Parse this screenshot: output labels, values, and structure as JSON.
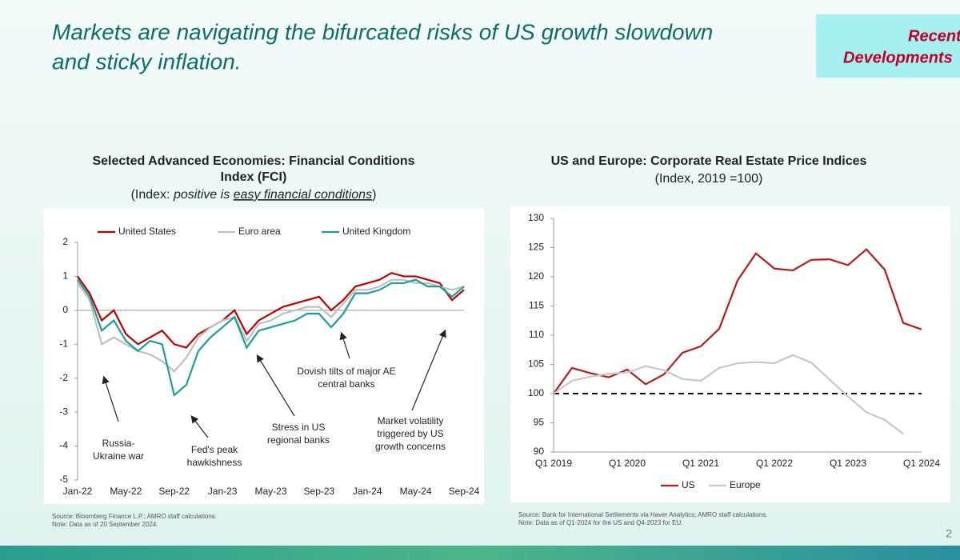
{
  "slide": {
    "title": [
      "Markets are navigating the bifurcated risks of US growth slowdown",
      "and sticky inflation."
    ],
    "tag": [
      "Recent",
      "Developments"
    ],
    "page": "2"
  },
  "chart_data": [
    {
      "type": "line",
      "title": [
        "Selected Advanced Economies: Financial Conditions",
        "Index (FCI)"
      ],
      "subtitle": [
        "(Index: ",
        "positive is ",
        "easy financial conditions",
        ")"
      ],
      "categories": [
        "Jan-22",
        null,
        null,
        null,
        "May-22",
        null,
        null,
        null,
        "Sep-22",
        null,
        null,
        null,
        "Jan-23",
        null,
        null,
        null,
        "May-23",
        null,
        null,
        null,
        "Sep-23",
        null,
        null,
        null,
        "Jan-24",
        null,
        null,
        null,
        "May-24",
        null,
        null,
        null,
        "Sep-24"
      ],
      "series": [
        {
          "name": "United States",
          "color": "#c00000",
          "values": [
            1.0,
            0.5,
            -0.3,
            0.0,
            -0.7,
            -1.0,
            -0.8,
            -0.6,
            -1.0,
            -1.1,
            -0.7,
            -0.5,
            -0.3,
            0.0,
            -0.7,
            -0.3,
            -0.1,
            0.1,
            0.2,
            0.3,
            0.4,
            0.0,
            0.3,
            0.7,
            0.8,
            0.9,
            1.1,
            1.0,
            1.0,
            0.9,
            0.8,
            0.3,
            0.6
          ]
        },
        {
          "name": "Euro area",
          "color": "#bfbfbf",
          "values": [
            0.8,
            0.3,
            -1.0,
            -0.8,
            -1.0,
            -1.2,
            -1.3,
            -1.5,
            -1.8,
            -1.4,
            -0.8,
            -0.5,
            -0.3,
            -0.2,
            -0.9,
            -0.4,
            -0.3,
            -0.1,
            0.0,
            0.1,
            0.1,
            -0.2,
            0.2,
            0.6,
            0.6,
            0.7,
            0.9,
            0.9,
            0.8,
            0.8,
            0.7,
            0.6,
            0.7
          ]
        },
        {
          "name": "United Kingdom",
          "color": "#1a9e9e",
          "values": [
            0.9,
            0.4,
            -0.6,
            -0.3,
            -0.9,
            -1.2,
            -0.9,
            -1.0,
            -2.5,
            -2.2,
            -1.2,
            -0.8,
            -0.5,
            -0.2,
            -1.1,
            -0.6,
            -0.5,
            -0.4,
            -0.3,
            -0.1,
            -0.1,
            -0.5,
            -0.1,
            0.5,
            0.5,
            0.6,
            0.8,
            0.8,
            0.9,
            0.7,
            0.7,
            0.4,
            0.7
          ]
        }
      ],
      "ylim": [
        -5,
        2
      ],
      "yticks": [
        -5,
        -4,
        -3,
        -2,
        -1,
        0,
        1,
        2
      ],
      "legend": "top",
      "annotations": [
        [
          "Russia-",
          "Ukraine war"
        ],
        [
          "Fed's peak",
          "hawkishness"
        ],
        [
          "Stress in US",
          "regional banks"
        ],
        [
          "Dovish tilts of major AE",
          "central banks"
        ],
        [
          "Market volatility",
          "triggered by US",
          "growth concerns"
        ]
      ],
      "source": "Source: Bloomberg Finance L.P.; AMRO staff calculations.",
      "note": "Note: Data as of 20 September 2024."
    },
    {
      "type": "line",
      "title": [
        "US and Europe: Corporate Real Estate Price Indices"
      ],
      "subtitle": [
        "(Index, 2019 =100)"
      ],
      "categories": [
        "Q1 2019",
        null,
        null,
        null,
        "Q1 2020",
        null,
        null,
        null,
        "Q1 2021",
        null,
        null,
        null,
        "Q1 2022",
        null,
        null,
        null,
        "Q1 2023",
        null,
        null,
        null,
        "Q1 2024"
      ],
      "series": [
        {
          "name": "US",
          "color": "#b71c1c",
          "values": [
            100,
            104.4,
            103.5,
            102.8,
            104.1,
            101.6,
            103.3,
            107,
            108.1,
            111.1,
            119.4,
            124,
            121.4,
            121.1,
            122.9,
            123,
            122,
            124.7,
            121.2,
            112.1,
            111
          ]
        },
        {
          "name": "Europe",
          "color": "#c8c8c8",
          "values": [
            100,
            102.2,
            102.9,
            103.4,
            103.6,
            104.7,
            104,
            102.5,
            102.2,
            104.4,
            105.2,
            105.4,
            105.2,
            106.6,
            105.3,
            102.4,
            99.5,
            96.8,
            95.5,
            93.1,
            null
          ]
        }
      ],
      "ylim": [
        90,
        130
      ],
      "yticks": [
        90,
        95,
        100,
        105,
        110,
        115,
        120,
        125,
        130
      ],
      "reference_line": 100,
      "legend": "bottom",
      "source": "Source: Bank for International Settlements via Haver Analytics; AMRO staff calculations.",
      "note": "Note: Data as of Q1-2024 for the US and Q4-2023 for EU."
    }
  ]
}
